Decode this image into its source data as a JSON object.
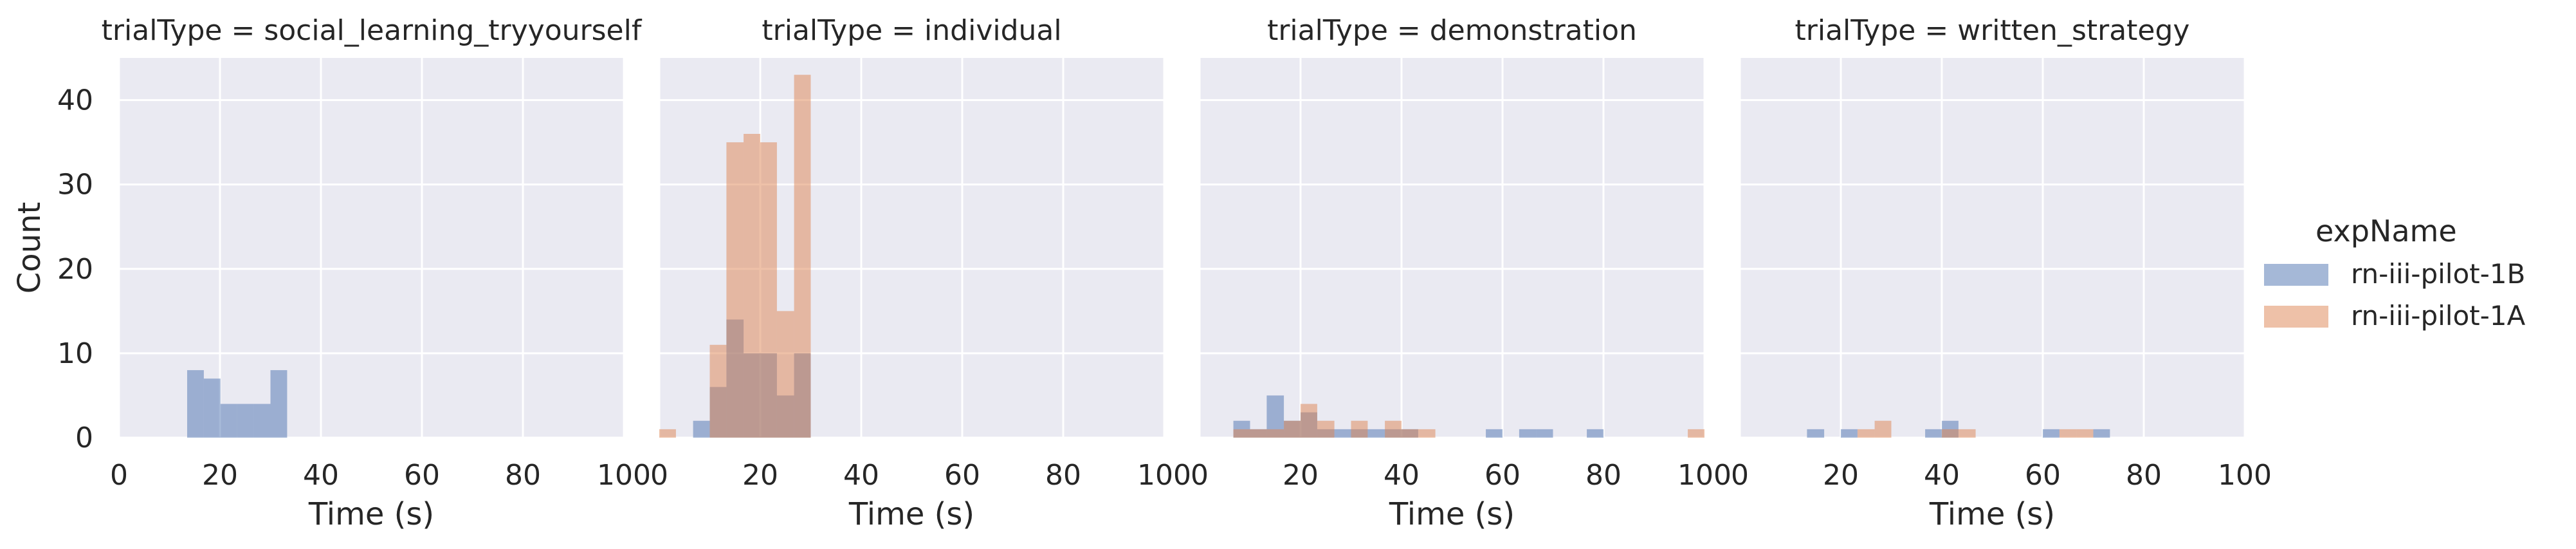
{
  "chart_data": {
    "type": "histogram",
    "layout": "facet-row-4",
    "ylabel": "Count",
    "xlabel": "Time (s)",
    "xlim": [
      0,
      100
    ],
    "ylim": [
      0,
      45
    ],
    "xticks": [
      "0",
      "20",
      "40",
      "60",
      "80",
      "100"
    ],
    "yticks": [
      "0",
      "10",
      "20",
      "30",
      "40"
    ],
    "grid": true,
    "legend": {
      "title": "expName",
      "position": "right",
      "entries": [
        {
          "name": "rn-iii-pilot-1B",
          "color": "#4c72b0"
        },
        {
          "name": "rn-iii-pilot-1A",
          "color": "#dd8452"
        }
      ]
    },
    "bin_width": 3.33,
    "panels": [
      {
        "title": "trialType = social_learning_tryyourself",
        "series": [
          {
            "name": "rn-iii-pilot-1B",
            "bins": [
              [
                13.5,
                16.8,
                8
              ],
              [
                16.8,
                20.1,
                7
              ],
              [
                20.1,
                23.4,
                4
              ],
              [
                23.4,
                26.7,
                4
              ],
              [
                26.7,
                30.0,
                4
              ],
              [
                30.0,
                33.3,
                8
              ]
            ]
          },
          {
            "name": "rn-iii-pilot-1A",
            "bins": []
          }
        ]
      },
      {
        "title": "trialType = individual",
        "series": [
          {
            "name": "rn-iii-pilot-1B",
            "bins": [
              [
                6.7,
                10.0,
                2
              ],
              [
                10.0,
                13.3,
                6
              ],
              [
                13.3,
                16.7,
                14
              ],
              [
                16.7,
                20.0,
                10
              ],
              [
                20.0,
                23.3,
                10
              ],
              [
                23.3,
                26.7,
                5
              ],
              [
                26.7,
                30.0,
                10
              ]
            ]
          },
          {
            "name": "rn-iii-pilot-1A",
            "bins": [
              [
                0.0,
                3.3,
                1
              ],
              [
                10.0,
                13.3,
                11
              ],
              [
                13.3,
                16.7,
                35
              ],
              [
                16.7,
                20.0,
                36
              ],
              [
                20.0,
                23.3,
                35
              ],
              [
                23.3,
                26.7,
                15
              ],
              [
                26.7,
                30.0,
                43
              ]
            ]
          }
        ]
      },
      {
        "title": "trialType = demonstration",
        "series": [
          {
            "name": "rn-iii-pilot-1B",
            "bins": [
              [
                6.7,
                10.0,
                2
              ],
              [
                10.0,
                13.3,
                1
              ],
              [
                13.3,
                16.7,
                5
              ],
              [
                16.7,
                20.0,
                2
              ],
              [
                20.0,
                23.3,
                3
              ],
              [
                23.3,
                26.7,
                1
              ],
              [
                26.7,
                30.0,
                1
              ],
              [
                30.0,
                33.3,
                1
              ],
              [
                33.3,
                36.7,
                1
              ],
              [
                36.7,
                40.0,
                1
              ],
              [
                40.0,
                43.3,
                1
              ],
              [
                56.7,
                60.0,
                1
              ],
              [
                63.3,
                66.7,
                1
              ],
              [
                66.7,
                70.0,
                1
              ],
              [
                76.7,
                80.0,
                1
              ]
            ]
          },
          {
            "name": "rn-iii-pilot-1A",
            "bins": [
              [
                6.7,
                10.0,
                1
              ],
              [
                10.0,
                13.3,
                1
              ],
              [
                13.3,
                16.7,
                1
              ],
              [
                16.7,
                20.0,
                2
              ],
              [
                20.0,
                23.3,
                4
              ],
              [
                23.3,
                26.7,
                2
              ],
              [
                30.0,
                33.3,
                2
              ],
              [
                36.7,
                40.0,
                2
              ],
              [
                40.0,
                43.3,
                1
              ],
              [
                43.3,
                46.7,
                1
              ],
              [
                96.7,
                100.0,
                1
              ]
            ]
          }
        ]
      },
      {
        "title": "trialType = written_strategy",
        "series": [
          {
            "name": "rn-iii-pilot-1B",
            "bins": [
              [
                13.3,
                16.7,
                1
              ],
              [
                20.0,
                23.3,
                1
              ],
              [
                36.7,
                40.0,
                1
              ],
              [
                40.0,
                43.3,
                2
              ],
              [
                60.0,
                63.3,
                1
              ],
              [
                70.0,
                73.3,
                1
              ]
            ]
          },
          {
            "name": "rn-iii-pilot-1A",
            "bins": [
              [
                23.3,
                26.7,
                1
              ],
              [
                26.7,
                30.0,
                2
              ],
              [
                40.0,
                43.3,
                1
              ],
              [
                43.3,
                46.7,
                1
              ],
              [
                63.3,
                66.7,
                1
              ],
              [
                66.7,
                70.0,
                1
              ]
            ]
          }
        ]
      }
    ]
  }
}
